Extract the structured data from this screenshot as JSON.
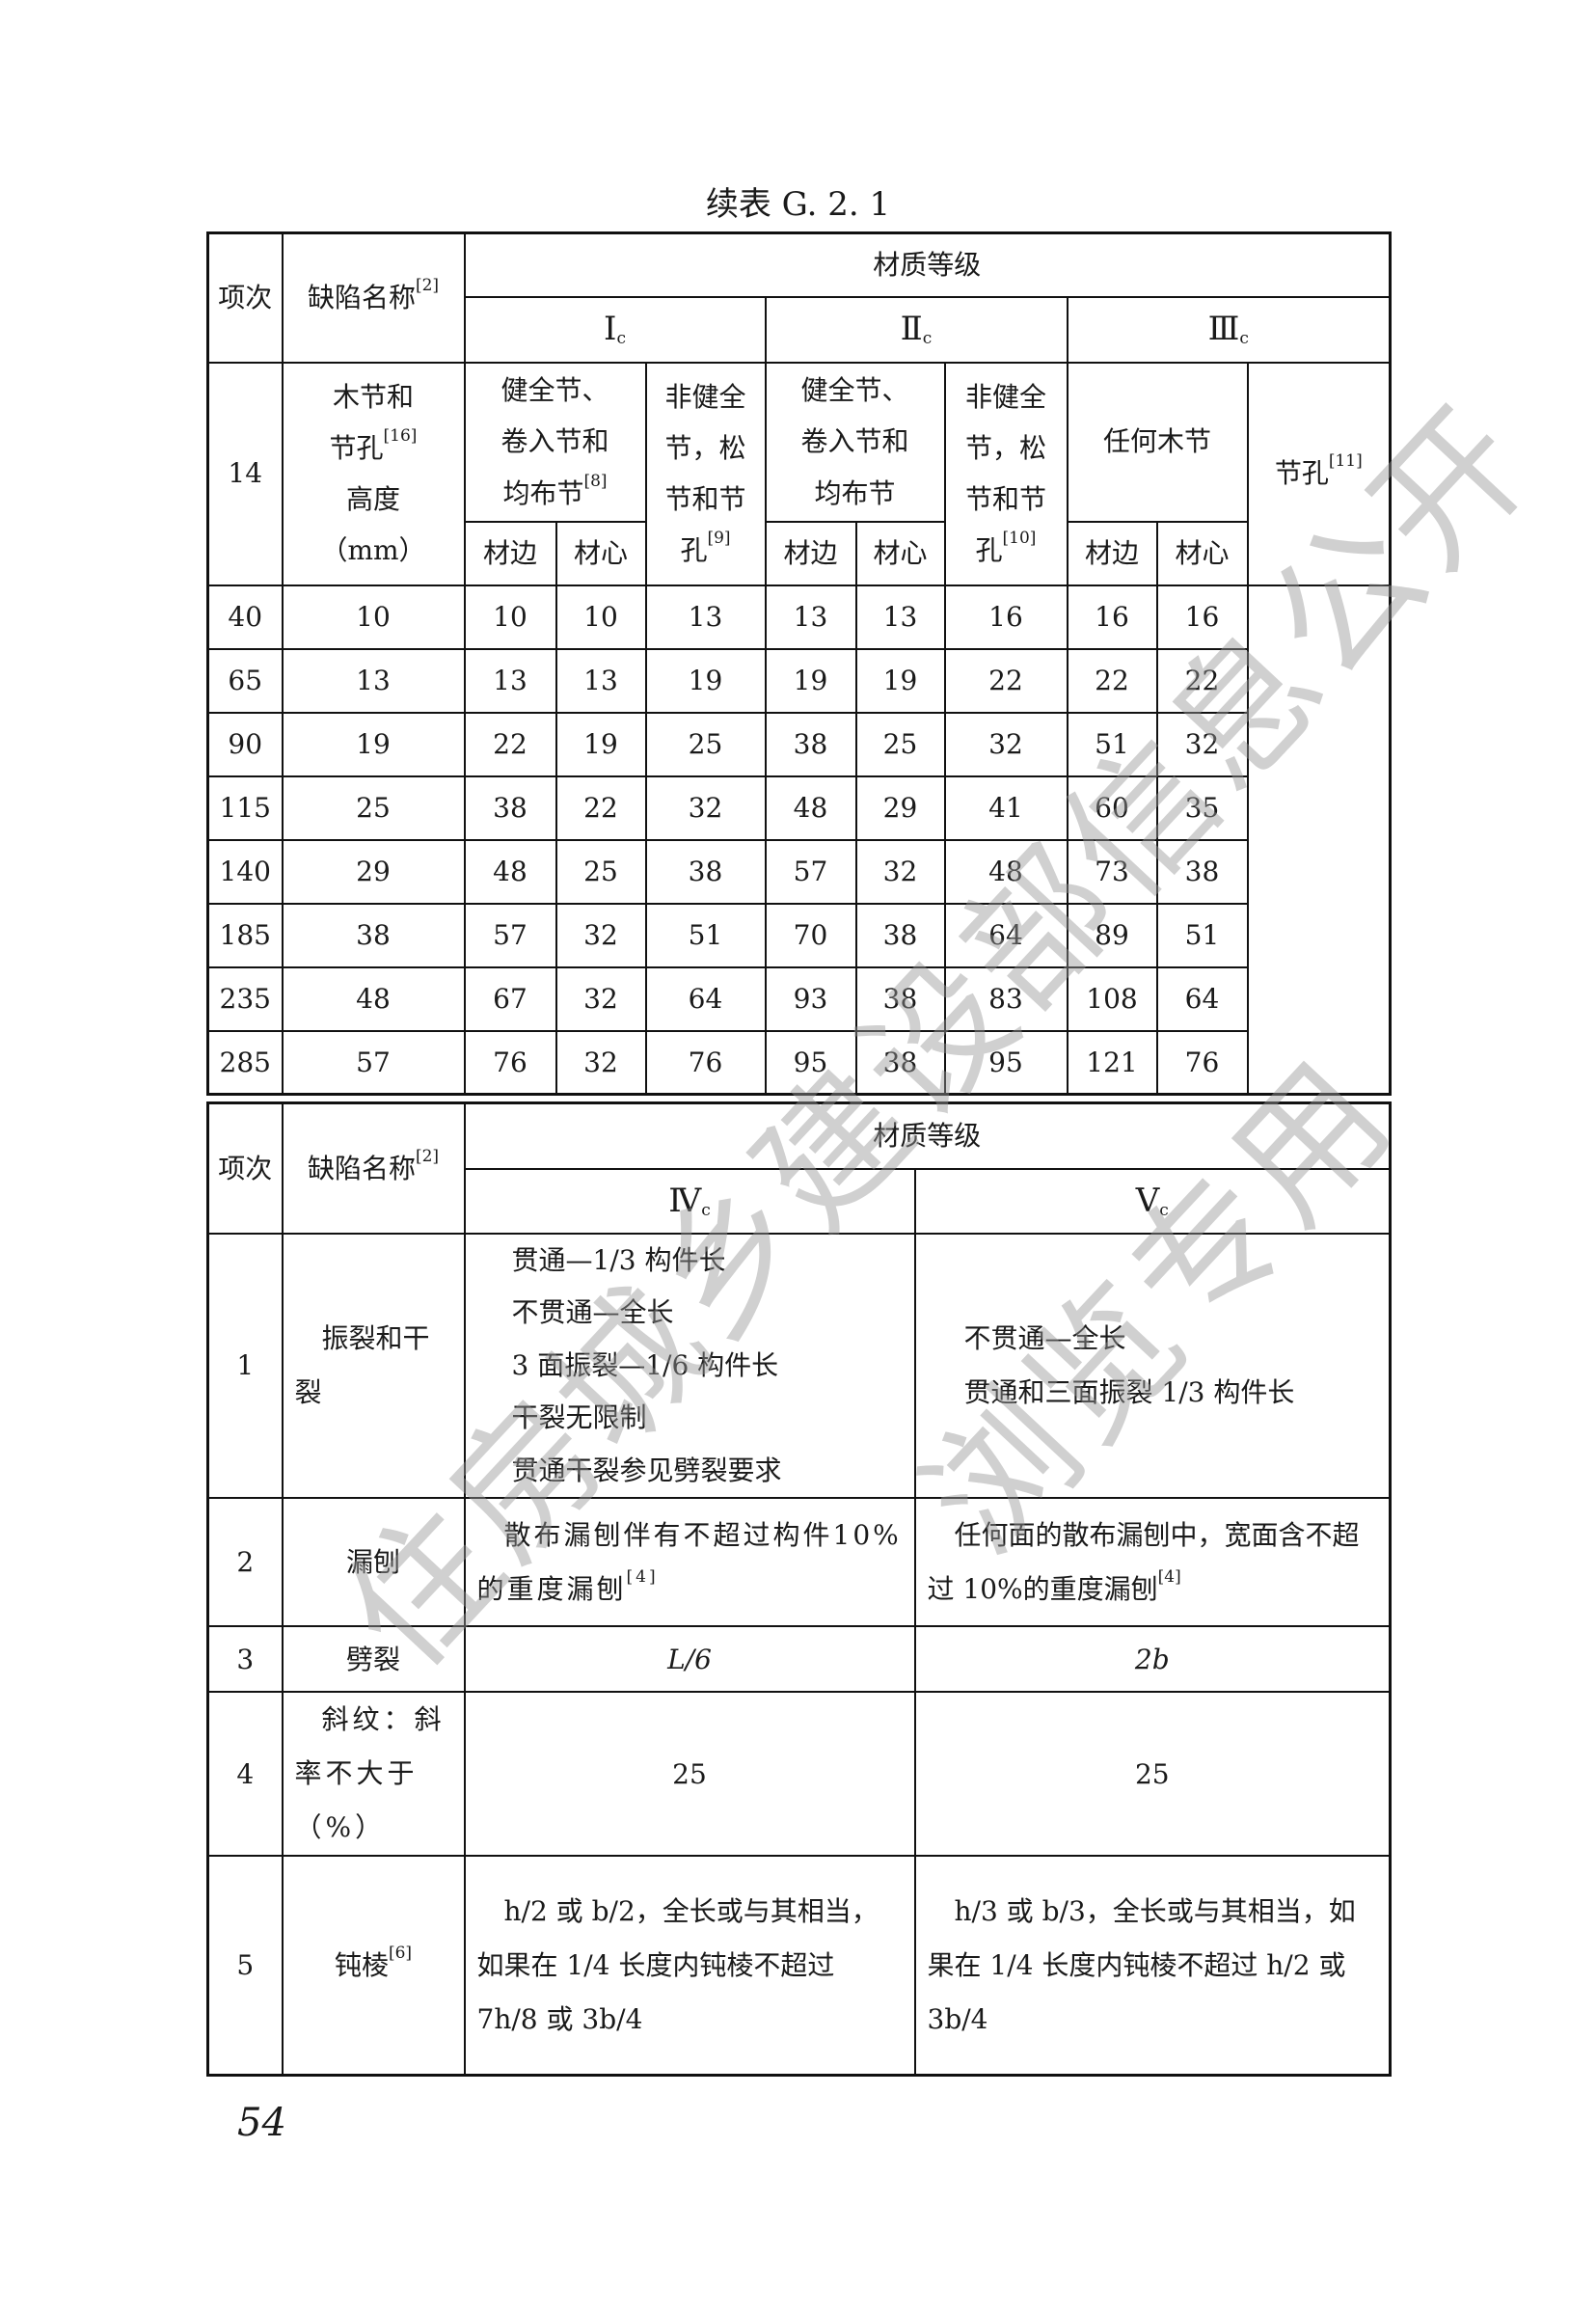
{
  "title": "续表 G. 2. 1",
  "page_number": "54",
  "watermark": {
    "line1": "住房城乡建设部信息公开",
    "line2": "浏览专用"
  },
  "table1": {
    "col_item": "项次",
    "col_defect": "缺陷名称",
    "col_defect_note": "[2]",
    "grade_header": "材质等级",
    "grades": [
      {
        "roman": "Ⅰ",
        "sub": "c"
      },
      {
        "roman": "Ⅱ",
        "sub": "c"
      },
      {
        "roman": "Ⅲ",
        "sub": "c"
      }
    ],
    "item_no": "14",
    "defect_name": {
      "l1": "木节和",
      "l2": "节孔",
      "note": "[16]",
      "l3": "高度",
      "l4": "（mm）"
    },
    "g1_sound": {
      "l1": "健全节、",
      "l2": "卷入节和",
      "l3": "均布节",
      "note": "[8]"
    },
    "g1_unsound": {
      "l1": "非健全",
      "l2": "节，松",
      "l3": "节和节",
      "l4": "孔",
      "note": "[9]"
    },
    "g2_sound": {
      "l1": "健全节、",
      "l2": "卷入节和",
      "l3": "均布节"
    },
    "g2_unsound": {
      "l1": "非健全",
      "l2": "节，松",
      "l3": "节和节",
      "l4": "孔",
      "note": "[10]"
    },
    "g3_any": "任何木节",
    "g3_hole": {
      "label": "节孔",
      "note": "[11]"
    },
    "edge": "材边",
    "core": "材心",
    "rows": [
      [
        "40",
        "10",
        "10",
        "10",
        "13",
        "13",
        "13",
        "16",
        "16",
        "16"
      ],
      [
        "65",
        "13",
        "13",
        "13",
        "19",
        "19",
        "19",
        "22",
        "22",
        "22"
      ],
      [
        "90",
        "19",
        "22",
        "19",
        "25",
        "38",
        "25",
        "32",
        "51",
        "32"
      ],
      [
        "115",
        "25",
        "38",
        "22",
        "32",
        "48",
        "29",
        "41",
        "60",
        "35"
      ],
      [
        "140",
        "29",
        "48",
        "25",
        "38",
        "57",
        "32",
        "48",
        "73",
        "38"
      ],
      [
        "185",
        "38",
        "57",
        "32",
        "51",
        "70",
        "38",
        "64",
        "89",
        "51"
      ],
      [
        "235",
        "48",
        "67",
        "32",
        "64",
        "93",
        "38",
        "83",
        "108",
        "64"
      ],
      [
        "285",
        "57",
        "76",
        "32",
        "76",
        "95",
        "38",
        "95",
        "121",
        "76"
      ]
    ]
  },
  "table2": {
    "col_item": "项次",
    "col_defect": "缺陷名称",
    "col_defect_note": "[2]",
    "grade_header": "材质等级",
    "grades": [
      {
        "roman": "Ⅳ",
        "sub": "c"
      },
      {
        "roman": "Ⅴ",
        "sub": "c"
      }
    ],
    "rows": [
      {
        "no": "1",
        "name": "振裂和干裂",
        "iv": [
          "贯通—1/3 构件长",
          "不贯通—全长",
          "3 面振裂—1/6 构件长",
          "干裂无限制",
          "贯通干裂参见劈裂要求"
        ],
        "v": [
          "不贯通—全长",
          "贯通和三面振裂 1/3 构件长"
        ]
      },
      {
        "no": "2",
        "name": "漏刨",
        "iv": "散布漏刨伴有不超过构件10%的重度漏刨",
        "iv_note": "[4]",
        "v": "任何面的散布漏刨中，宽面含不超过 10%的重度漏刨",
        "v_note": "[4]"
      },
      {
        "no": "3",
        "name": "劈裂",
        "iv": "L/6",
        "v": "2b"
      },
      {
        "no": "4",
        "name": "斜纹：斜率不大于（%）",
        "iv": "25",
        "v": "25"
      },
      {
        "no": "5",
        "name": "钝棱",
        "name_note": "[6]",
        "iv": "h/2 或 b/2，全长或与其相当，如果在 1/4 长度内钝棱不超过 7h/8 或 3b/4",
        "v": "h/3 或 b/3，全长或与其相当，如果在 1/4 长度内钝棱不超过 h/2 或 3b/4"
      }
    ]
  }
}
